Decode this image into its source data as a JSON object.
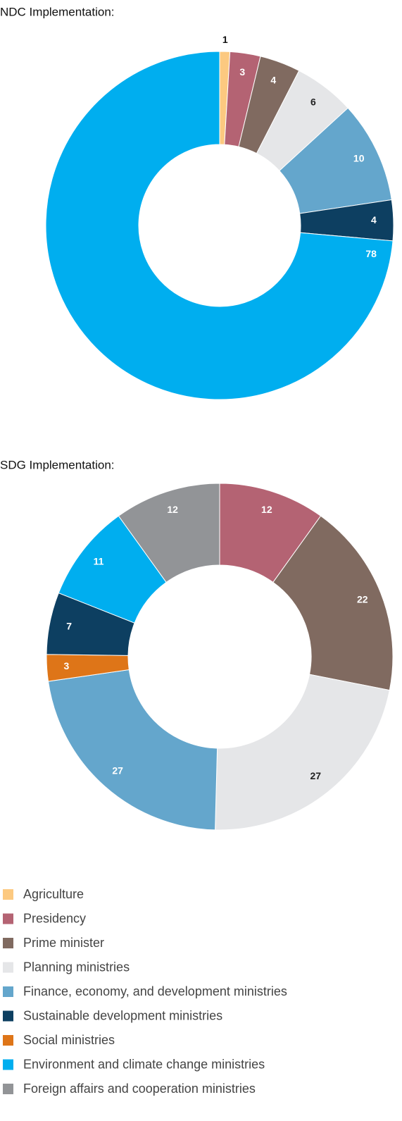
{
  "chart_data": [
    {
      "type": "pie",
      "title": "NDC Implementation:",
      "values": [
        1,
        3,
        4,
        6,
        10,
        4,
        78
      ],
      "colors": [
        "#fcc980",
        "#b46373",
        "#806a60",
        "#e5e6e8",
        "#64a6cc",
        "#0d3f61",
        "#00aeef"
      ]
    },
    {
      "type": "pie",
      "title": "SDG Implementation:",
      "values": [
        12,
        22,
        27,
        27,
        3,
        7,
        11,
        12
      ],
      "colors": [
        "#b46373",
        "#806a60",
        "#e5e6e8",
        "#64a6cc",
        "#de7518",
        "#0d3f61",
        "#00aeef",
        "#929497"
      ]
    }
  ],
  "legend": [
    {
      "name": "Agriculture",
      "color": "#fcc980"
    },
    {
      "name": "Presidency",
      "color": "#b46373"
    },
    {
      "name": "Prime minister",
      "color": "#806a60"
    },
    {
      "name": "Planning ministries",
      "color": "#e5e6e8"
    },
    {
      "name": "Finance, economy, and development ministries",
      "color": "#64a6cc"
    },
    {
      "name": "Sustainable development ministries",
      "color": "#0d3f61"
    },
    {
      "name": "Social ministries",
      "color": "#de7518"
    },
    {
      "name": "Environment and climate change ministries",
      "color": "#00aeef"
    },
    {
      "name": "Foreign affairs and cooperation ministries",
      "color": "#929497"
    }
  ]
}
